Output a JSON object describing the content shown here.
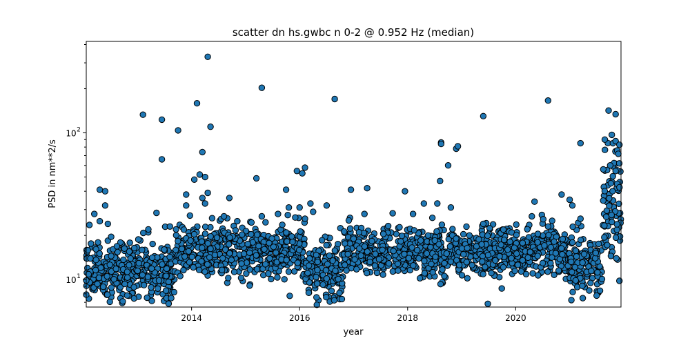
{
  "chart_data": {
    "type": "scatter",
    "title": "scatter dn hs.gwbc n 0-2 @ 0.952 Hz (median)",
    "xlabel": "year",
    "ylabel": "PSD in nm**2/s",
    "yscale": "log",
    "xlim": [
      2012.05,
      2021.95
    ],
    "ylim": [
      6.5,
      420
    ],
    "grid": false,
    "marker_color": "#1f77b4",
    "marker_edge": "#000000",
    "x_ticks": [
      {
        "value": 2014,
        "label": "2014"
      },
      {
        "value": 2016,
        "label": "2016"
      },
      {
        "value": 2018,
        "label": "2018"
      },
      {
        "value": 2020,
        "label": "2020"
      }
    ],
    "y_ticks": [
      {
        "value": 10,
        "label": "10",
        "sup": "1"
      },
      {
        "value": 100,
        "label": "10",
        "sup": "2"
      }
    ],
    "bands": [
      {
        "start": 2012.05,
        "end": 2013.7,
        "base": 11.5,
        "spread": 0.11
      },
      {
        "start": 2013.7,
        "end": 2016.1,
        "base": 15.5,
        "spread": 0.09
      },
      {
        "start": 2016.1,
        "end": 2016.8,
        "base": 11.0,
        "spread": 0.1
      },
      {
        "start": 2016.8,
        "end": 2021.0,
        "base": 15.5,
        "spread": 0.08
      },
      {
        "start": 2021.0,
        "end": 2021.6,
        "base": 12.5,
        "spread": 0.1
      },
      {
        "start": 2021.6,
        "end": 2021.95,
        "base": 30.0,
        "spread": 0.2
      }
    ],
    "outliers": [
      {
        "x": 2012.05,
        "y": 7.9
      },
      {
        "x": 2012.3,
        "y": 41
      },
      {
        "x": 2012.4,
        "y": 40
      },
      {
        "x": 2012.4,
        "y": 32
      },
      {
        "x": 2012.2,
        "y": 28
      },
      {
        "x": 2012.3,
        "y": 25
      },
      {
        "x": 2012.45,
        "y": 24
      },
      {
        "x": 2013.1,
        "y": 133
      },
      {
        "x": 2013.45,
        "y": 123
      },
      {
        "x": 2013.45,
        "y": 66
      },
      {
        "x": 2013.2,
        "y": 22
      },
      {
        "x": 2013.35,
        "y": 28.5
      },
      {
        "x": 2013.6,
        "y": 23
      },
      {
        "x": 2013.75,
        "y": 104
      },
      {
        "x": 2014.1,
        "y": 159
      },
      {
        "x": 2014.3,
        "y": 330
      },
      {
        "x": 2014.35,
        "y": 110
      },
      {
        "x": 2014.2,
        "y": 74
      },
      {
        "x": 2014.15,
        "y": 52
      },
      {
        "x": 2014.25,
        "y": 50
      },
      {
        "x": 2014.05,
        "y": 48
      },
      {
        "x": 2013.9,
        "y": 38
      },
      {
        "x": 2014.3,
        "y": 39
      },
      {
        "x": 2014.2,
        "y": 36
      },
      {
        "x": 2014.25,
        "y": 33
      },
      {
        "x": 2013.9,
        "y": 32
      },
      {
        "x": 2014.7,
        "y": 36
      },
      {
        "x": 2014.6,
        "y": 27
      },
      {
        "x": 2015.3,
        "y": 203
      },
      {
        "x": 2015.2,
        "y": 49
      },
      {
        "x": 2015.3,
        "y": 27
      },
      {
        "x": 2015.6,
        "y": 28
      },
      {
        "x": 2015.75,
        "y": 41
      },
      {
        "x": 2015.95,
        "y": 55
      },
      {
        "x": 2016.05,
        "y": 53
      },
      {
        "x": 2016.1,
        "y": 58
      },
      {
        "x": 2015.8,
        "y": 31
      },
      {
        "x": 2016.0,
        "y": 31
      },
      {
        "x": 2016.2,
        "y": 33
      },
      {
        "x": 2016.25,
        "y": 29
      },
      {
        "x": 2016.5,
        "y": 32
      },
      {
        "x": 2016.1,
        "y": 26
      },
      {
        "x": 2016.65,
        "y": 170
      },
      {
        "x": 2016.95,
        "y": 41
      },
      {
        "x": 2017.25,
        "y": 42
      },
      {
        "x": 2017.2,
        "y": 28
      },
      {
        "x": 2017.0,
        "y": 19
      },
      {
        "x": 2017.1,
        "y": 21
      },
      {
        "x": 2017.95,
        "y": 40
      },
      {
        "x": 2018.1,
        "y": 28
      },
      {
        "x": 2018.3,
        "y": 33
      },
      {
        "x": 2018.55,
        "y": 33
      },
      {
        "x": 2018.62,
        "y": 86
      },
      {
        "x": 2018.62,
        "y": 84
      },
      {
        "x": 2018.6,
        "y": 47
      },
      {
        "x": 2018.75,
        "y": 60
      },
      {
        "x": 2018.8,
        "y": 31
      },
      {
        "x": 2018.9,
        "y": 78
      },
      {
        "x": 2018.93,
        "y": 81
      },
      {
        "x": 2019.4,
        "y": 130
      },
      {
        "x": 2019.4,
        "y": 24
      },
      {
        "x": 2020.35,
        "y": 34
      },
      {
        "x": 2020.3,
        "y": 27
      },
      {
        "x": 2020.6,
        "y": 166
      },
      {
        "x": 2020.6,
        "y": 23
      },
      {
        "x": 2020.85,
        "y": 38
      },
      {
        "x": 2021.0,
        "y": 35
      },
      {
        "x": 2021.05,
        "y": 32
      },
      {
        "x": 2021.2,
        "y": 85
      },
      {
        "x": 2021.2,
        "y": 26
      },
      {
        "x": 2021.65,
        "y": 90
      },
      {
        "x": 2021.72,
        "y": 142
      },
      {
        "x": 2021.78,
        "y": 97
      },
      {
        "x": 2021.8,
        "y": 85
      },
      {
        "x": 2021.85,
        "y": 134
      },
      {
        "x": 2021.85,
        "y": 88
      },
      {
        "x": 2021.9,
        "y": 72
      },
      {
        "x": 2021.92,
        "y": 83
      },
      {
        "x": 2021.75,
        "y": 60
      },
      {
        "x": 2021.85,
        "y": 55
      }
    ]
  }
}
